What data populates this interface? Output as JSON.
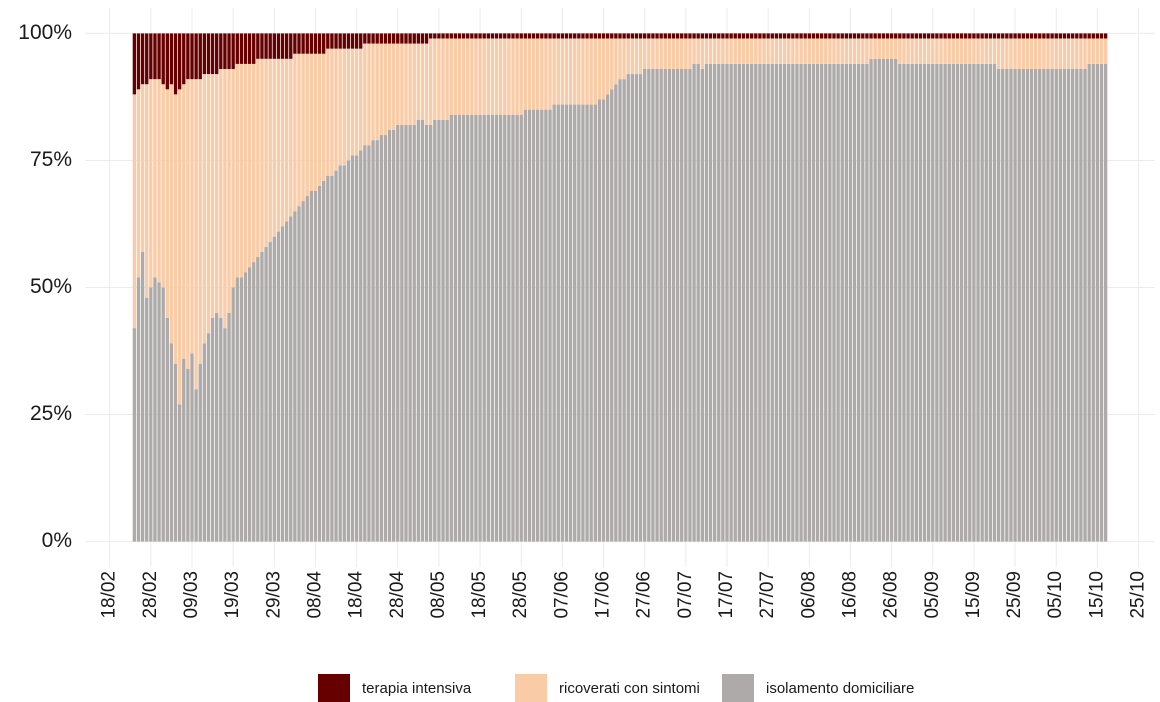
{
  "chart_data": {
    "type": "stacked-bar-100",
    "x": [
      "24/02",
      "25/02",
      "26/02",
      "27/02",
      "28/02",
      "29/02",
      "01/03",
      "02/03",
      "03/03",
      "04/03",
      "05/03",
      "06/03",
      "07/03",
      "08/03",
      "09/03",
      "10/03",
      "11/03",
      "12/03",
      "13/03",
      "14/03",
      "15/03",
      "16/03",
      "17/03",
      "18/03",
      "19/03",
      "20/03",
      "21/03",
      "22/03",
      "23/03",
      "24/03",
      "25/03",
      "26/03",
      "27/03",
      "28/03",
      "29/03",
      "30/03",
      "31/03",
      "01/04",
      "02/04",
      "03/04",
      "04/04",
      "05/04",
      "06/04",
      "07/04",
      "08/04",
      "09/04",
      "10/04",
      "11/04",
      "12/04",
      "13/04",
      "14/04",
      "15/04",
      "16/04",
      "17/04",
      "18/04",
      "19/04",
      "20/04",
      "21/04",
      "22/04",
      "23/04",
      "24/04",
      "25/04",
      "26/04",
      "27/04",
      "28/04",
      "29/04",
      "30/04",
      "01/05",
      "02/05",
      "03/05",
      "04/05",
      "05/05",
      "06/05",
      "07/05",
      "08/05",
      "09/05",
      "10/05",
      "11/05",
      "12/05",
      "13/05",
      "14/05",
      "15/05",
      "16/05",
      "17/05",
      "18/05",
      "19/05",
      "20/05",
      "21/05",
      "22/05",
      "23/05",
      "24/05",
      "25/05",
      "26/05",
      "27/05",
      "28/05",
      "29/05",
      "30/05",
      "31/05",
      "01/06",
      "02/06",
      "03/06",
      "04/06",
      "05/06",
      "06/06",
      "07/06",
      "08/06",
      "09/06",
      "10/06",
      "11/06",
      "12/06",
      "13/06",
      "14/06",
      "15/06",
      "16/06",
      "17/06",
      "18/06",
      "19/06",
      "20/06",
      "21/06",
      "22/06",
      "23/06",
      "24/06",
      "25/06",
      "26/06",
      "27/06",
      "28/06",
      "29/06",
      "30/06",
      "01/07",
      "02/07",
      "03/07",
      "04/07",
      "05/07",
      "06/07",
      "07/07",
      "08/07",
      "09/07",
      "10/07",
      "11/07",
      "12/07",
      "13/07",
      "14/07",
      "15/07",
      "16/07",
      "17/07",
      "18/07",
      "19/07",
      "20/07",
      "21/07",
      "22/07",
      "23/07",
      "24/07",
      "25/07",
      "26/07",
      "27/07",
      "28/07",
      "29/07",
      "30/07",
      "31/07",
      "01/08",
      "02/08",
      "03/08",
      "04/08",
      "05/08",
      "06/08",
      "07/08",
      "08/08",
      "09/08",
      "10/08",
      "11/08",
      "12/08",
      "13/08",
      "14/08",
      "15/08",
      "16/08",
      "17/08",
      "18/08",
      "19/08",
      "20/08",
      "21/08",
      "22/08",
      "23/08",
      "24/08",
      "25/08",
      "26/08",
      "27/08",
      "28/08",
      "29/08",
      "30/08",
      "31/08",
      "01/09",
      "02/09",
      "03/09",
      "04/09",
      "05/09",
      "06/09",
      "07/09",
      "08/09",
      "09/09",
      "10/09",
      "11/09",
      "12/09",
      "13/09",
      "14/09",
      "15/09",
      "16/09",
      "17/09",
      "18/09",
      "19/09",
      "20/09",
      "21/09",
      "22/09",
      "23/09",
      "24/09",
      "25/09",
      "26/09",
      "27/09",
      "28/09",
      "29/09",
      "30/09",
      "01/10",
      "02/10",
      "03/10",
      "04/10",
      "05/10",
      "06/10",
      "07/10",
      "08/10",
      "09/10",
      "10/10",
      "11/10",
      "12/10",
      "13/10",
      "14/10",
      "15/10",
      "16/10",
      "17/10"
    ],
    "series": [
      {
        "name": "terapia intensiva",
        "color": "#660000",
        "values": [
          12,
          11,
          10,
          10,
          9,
          9,
          9,
          10,
          11,
          10,
          12,
          11,
          10,
          9,
          9,
          9,
          9,
          8,
          8,
          8,
          8,
          7,
          7,
          7,
          7,
          6,
          6,
          6,
          6,
          6,
          5,
          5,
          5,
          5,
          5,
          5,
          5,
          5,
          5,
          4,
          4,
          4,
          4,
          4,
          4,
          4,
          4,
          3,
          3,
          3,
          3,
          3,
          3,
          3,
          3,
          3,
          2,
          2,
          2,
          2,
          2,
          2,
          2,
          2,
          2,
          2,
          2,
          2,
          2,
          2,
          2,
          2,
          1,
          1,
          1,
          1,
          1,
          1,
          1,
          1,
          1,
          1,
          1,
          1,
          1,
          1,
          1,
          1,
          1,
          1,
          1,
          1,
          1,
          1,
          1,
          1,
          1,
          1,
          1,
          1,
          1,
          1,
          1,
          1,
          1,
          1,
          1,
          1,
          1,
          1,
          1,
          1,
          1,
          1,
          1,
          1,
          1,
          1,
          1,
          1,
          1,
          1,
          1,
          1,
          1,
          1,
          1,
          1,
          1,
          1,
          1,
          1,
          1,
          1,
          1,
          1,
          1,
          1,
          1,
          1,
          1,
          1,
          1,
          1,
          1,
          1,
          1,
          1,
          1,
          1,
          1,
          1,
          1,
          1,
          1,
          1,
          1,
          1,
          1,
          1,
          1,
          1,
          1,
          1,
          1,
          1,
          1,
          1,
          1,
          1,
          1,
          1,
          1,
          1,
          1,
          1,
          1,
          1,
          1,
          1,
          1,
          1,
          1,
          1,
          1,
          1,
          1,
          1,
          1,
          1,
          1,
          1,
          1,
          1,
          1,
          1,
          1,
          1,
          1,
          1,
          1,
          1,
          1,
          1,
          1,
          1,
          1,
          1,
          1,
          1,
          1,
          1,
          1,
          1,
          1,
          1,
          1,
          1,
          1,
          1,
          1,
          1,
          1,
          1,
          1,
          1,
          1,
          1,
          1,
          1,
          1,
          1,
          1,
          1,
          1,
          1,
          1
        ]
      },
      {
        "name": "ricoverati con sintomi",
        "color": "#f9cba7",
        "values": [
          46,
          37,
          33,
          42,
          41,
          39,
          40,
          40,
          45,
          51,
          53,
          62,
          54,
          57,
          54,
          61,
          56,
          53,
          51,
          48,
          47,
          49,
          51,
          48,
          43,
          42,
          42,
          41,
          40,
          39,
          39,
          38,
          37,
          36,
          35,
          34,
          33,
          32,
          31,
          31,
          30,
          29,
          28,
          27,
          27,
          26,
          25,
          25,
          25,
          24,
          23,
          23,
          22,
          21,
          21,
          20,
          20,
          20,
          19,
          19,
          18,
          18,
          17,
          17,
          16,
          16,
          16,
          16,
          16,
          15,
          15,
          16,
          17,
          16,
          16,
          16,
          16,
          15,
          15,
          15,
          15,
          15,
          15,
          15,
          15,
          15,
          15,
          15,
          15,
          15,
          15,
          15,
          15,
          15,
          15,
          14,
          14,
          14,
          14,
          14,
          14,
          14,
          13,
          13,
          13,
          13,
          13,
          13,
          13,
          13,
          13,
          13,
          13,
          12,
          12,
          11,
          10,
          9,
          8,
          8,
          7,
          7,
          7,
          7,
          6,
          6,
          6,
          6,
          6,
          6,
          6,
          6,
          6,
          6,
          6,
          6,
          5,
          5,
          6,
          5,
          5,
          5,
          5,
          5,
          5,
          5,
          5,
          5,
          5,
          5,
          5,
          5,
          5,
          5,
          5,
          5,
          5,
          5,
          5,
          5,
          5,
          5,
          5,
          5,
          5,
          5,
          5,
          5,
          5,
          5,
          5,
          5,
          5,
          5,
          5,
          5,
          5,
          5,
          5,
          4,
          4,
          4,
          4,
          4,
          4,
          4,
          5,
          5,
          5,
          5,
          5,
          5,
          5,
          5,
          5,
          5,
          5,
          5,
          5,
          5,
          5,
          5,
          5,
          5,
          5,
          5,
          5,
          5,
          5,
          5,
          6,
          6,
          6,
          6,
          6,
          6,
          6,
          6,
          6,
          6,
          6,
          6,
          6,
          6,
          6,
          6,
          6,
          6,
          6,
          6,
          6,
          6,
          5,
          5,
          5,
          5,
          5
        ]
      },
      {
        "name": "isolamento domiciliare",
        "color": "#aeaaaa",
        "values": [
          42,
          52,
          57,
          48,
          50,
          52,
          51,
          50,
          44,
          39,
          35,
          27,
          36,
          34,
          37,
          30,
          35,
          39,
          41,
          44,
          45,
          44,
          42,
          45,
          50,
          52,
          52,
          53,
          54,
          55,
          56,
          57,
          58,
          59,
          60,
          61,
          62,
          63,
          64,
          65,
          66,
          67,
          68,
          69,
          69,
          70,
          71,
          72,
          72,
          73,
          74,
          74,
          75,
          76,
          76,
          77,
          78,
          78,
          79,
          79,
          80,
          80,
          81,
          81,
          82,
          82,
          82,
          82,
          82,
          83,
          83,
          82,
          82,
          83,
          83,
          83,
          83,
          84,
          84,
          84,
          84,
          84,
          84,
          84,
          84,
          84,
          84,
          84,
          84,
          84,
          84,
          84,
          84,
          84,
          84,
          85,
          85,
          85,
          85,
          85,
          85,
          85,
          86,
          86,
          86,
          86,
          86,
          86,
          86,
          86,
          86,
          86,
          86,
          87,
          87,
          88,
          89,
          90,
          91,
          91,
          92,
          92,
          92,
          92,
          93,
          93,
          93,
          93,
          93,
          93,
          93,
          93,
          93,
          93,
          93,
          93,
          94,
          94,
          93,
          94,
          94,
          94,
          94,
          94,
          94,
          94,
          94,
          94,
          94,
          94,
          94,
          94,
          94,
          94,
          94,
          94,
          94,
          94,
          94,
          94,
          94,
          94,
          94,
          94,
          94,
          94,
          94,
          94,
          94,
          94,
          94,
          94,
          94,
          94,
          94,
          94,
          94,
          94,
          94,
          95,
          95,
          95,
          95,
          95,
          95,
          95,
          94,
          94,
          94,
          94,
          94,
          94,
          94,
          94,
          94,
          94,
          94,
          94,
          94,
          94,
          94,
          94,
          94,
          94,
          94,
          94,
          94,
          94,
          94,
          94,
          93,
          93,
          93,
          93,
          93,
          93,
          93,
          93,
          93,
          93,
          93,
          93,
          93,
          93,
          93,
          93,
          93,
          93,
          93,
          93,
          93,
          93,
          94,
          94,
          94,
          94,
          94
        ]
      }
    ],
    "xlim": [
      "12/02",
      "29/10"
    ],
    "xticks": [
      "18/02",
      "28/02",
      "09/03",
      "19/03",
      "29/03",
      "08/04",
      "18/04",
      "28/04",
      "08/05",
      "18/05",
      "28/05",
      "07/06",
      "17/06",
      "27/06",
      "07/07",
      "17/07",
      "27/07",
      "06/08",
      "16/08",
      "26/08",
      "05/09",
      "15/09",
      "25/09",
      "05/10",
      "15/10",
      "25/10"
    ],
    "ylim": [
      -5,
      105
    ],
    "yticks": [
      {
        "value": 0,
        "label": "0%"
      },
      {
        "value": 25,
        "label": "25%"
      },
      {
        "value": 50,
        "label": "50%"
      },
      {
        "value": 75,
        "label": "75%"
      },
      {
        "value": 100,
        "label": "100%"
      }
    ],
    "grid": true,
    "legend": "bottom"
  }
}
